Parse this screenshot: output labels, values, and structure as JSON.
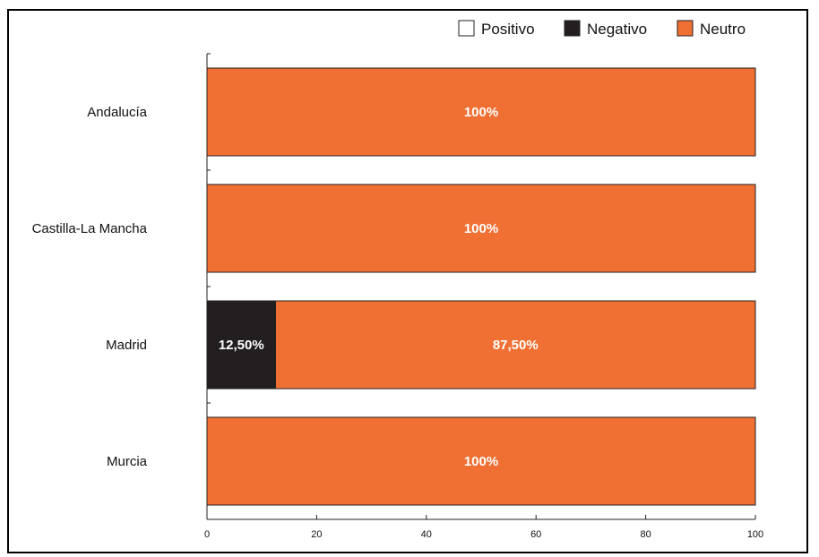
{
  "chart_data": {
    "type": "bar",
    "orientation": "horizontal",
    "stacked": true,
    "categories": [
      "Andalucía",
      "Castilla-La Mancha",
      "Madrid",
      "Murcia"
    ],
    "series": [
      {
        "name": "Positivo",
        "color": "#ffffff",
        "values": [
          0,
          0,
          0,
          0
        ],
        "labels": [
          "",
          "",
          "",
          ""
        ]
      },
      {
        "name": "Negativo",
        "color": "#231f20",
        "values": [
          0,
          0,
          12.5,
          0
        ],
        "labels": [
          "",
          "",
          "12,50%",
          ""
        ]
      },
      {
        "name": "Neutro",
        "color": "#f07033",
        "values": [
          100,
          100,
          87.5,
          100
        ],
        "labels": [
          "100%",
          "100%",
          "87,50%",
          "100%"
        ]
      }
    ],
    "xlim": [
      0,
      100
    ],
    "xticks": [
      0,
      20,
      40,
      60,
      80,
      100
    ],
    "xtick_labels": [
      "0",
      "20",
      "40",
      "60",
      "80",
      "100"
    ],
    "legend_position": "top-right",
    "grid": false
  }
}
